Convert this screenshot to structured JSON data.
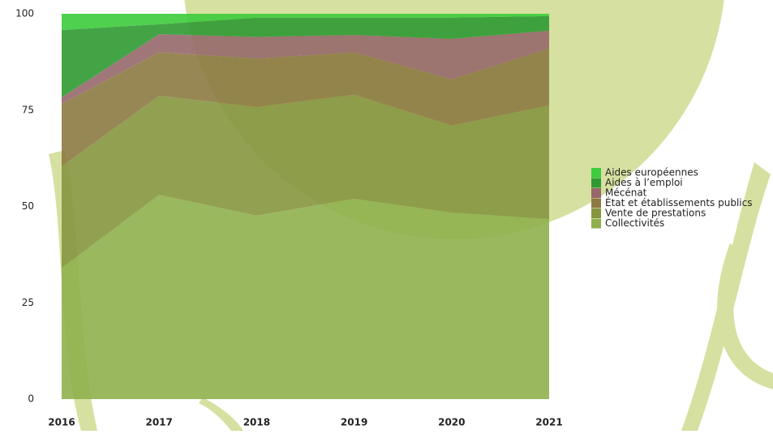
{
  "chart_data": {
    "type": "stacked-area",
    "x": [
      2016,
      2017,
      2018,
      2019,
      2020,
      2021
    ],
    "xlim": [
      2016,
      2021
    ],
    "xticks": [
      2016,
      2017,
      2018,
      2019,
      2020,
      2021
    ],
    "ylim": [
      0,
      100
    ],
    "yticks": [
      0,
      25,
      50,
      75,
      100
    ],
    "series": [
      {
        "name": "Collectivités",
        "color": "#8fb04c",
        "values": [
          34,
          53,
          47.6,
          52,
          48.4,
          46.7
        ]
      },
      {
        "name": "Vente de prestations",
        "color": "#86963f",
        "values": [
          26.4,
          25.7,
          28.2,
          27,
          22.6,
          29.5
        ]
      },
      {
        "name": "État et établissements publics",
        "color": "#8c7a42",
        "values": [
          16.2,
          11.3,
          12.6,
          11,
          12,
          14.8
        ]
      },
      {
        "name": "Mécénat",
        "color": "#96686a",
        "values": [
          1.7,
          4.7,
          5.6,
          4.5,
          10.5,
          4.6
        ]
      },
      {
        "name": "Aides à l’emploi",
        "color": "#2f9a32",
        "values": [
          17.5,
          2.6,
          5,
          4.5,
          5.5,
          3.8
        ]
      },
      {
        "name": "Aides européennes",
        "color": "#3ccc3c",
        "values": [
          4.2,
          2.7,
          1,
          1,
          1,
          0.6
        ]
      }
    ]
  }
}
